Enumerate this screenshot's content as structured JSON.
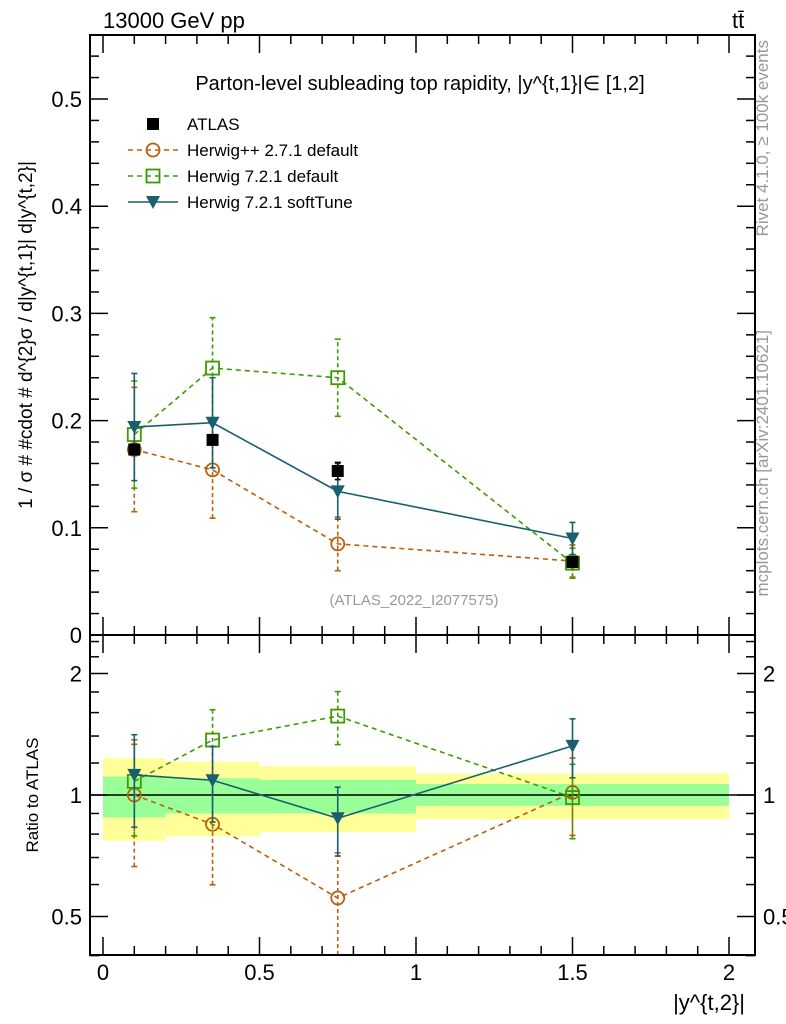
{
  "header": {
    "left": "13000 GeV pp",
    "right": "tt̄"
  },
  "side_text": {
    "rivet": "Rivet 4.1.0, ≥ 100k events",
    "mcplots": "mcplots.cern.ch [arXiv:2401.10621]"
  },
  "watermark": "(ATLAS_2022_I2077575)",
  "colors": {
    "atlas": "#000000",
    "herwigpp": "#b8600c",
    "h7default": "#3f9a00",
    "softtune": "#1b5e6e",
    "band_inner": "#99ff99",
    "band_outer": "#ffff99"
  },
  "chart_data": [
    {
      "type": "scatter",
      "panel": "main",
      "title": "Parton-level subleading top rapidity, |y^{t,1}|∈ [1,2]",
      "xlabel": "",
      "ylabel": "1 / σ # #cdot # d^{2}σ / d|y^{t,1}| d|y^{t,2}|",
      "xlim": [
        -0.04,
        2.08
      ],
      "ylim": [
        0,
        0.56
      ],
      "yticks": [
        "0",
        "0.1",
        "0.2",
        "0.3",
        "0.4",
        "0.5"
      ],
      "legend_position": "top-left",
      "x": [
        0.1,
        0.35,
        0.75,
        1.5
      ],
      "bins": [
        [
          0,
          0.2
        ],
        [
          0.2,
          0.5
        ],
        [
          0.5,
          1.0
        ],
        [
          1.0,
          2.0
        ]
      ],
      "series": [
        {
          "name": "ATLAS",
          "key": "atlas",
          "marker": "filled-square",
          "line": "none",
          "values": [
            0.173,
            0.182,
            0.153,
            0.068
          ],
          "yerr": [
            0.004,
            0.004,
            0.008,
            0.003
          ]
        },
        {
          "name": "Herwig++ 2.7.1 default",
          "key": "herwigpp",
          "marker": "open-circle",
          "line": "dashed",
          "values": [
            0.173,
            0.154,
            0.085,
            0.069
          ],
          "yerr": [
            0.058,
            0.045,
            0.025,
            0.015
          ]
        },
        {
          "name": "Herwig 7.2.1 default",
          "key": "h7default",
          "marker": "open-square",
          "line": "dashed",
          "values": [
            0.187,
            0.249,
            0.24,
            0.067
          ],
          "yerr": [
            0.05,
            0.047,
            0.036,
            0.014
          ]
        },
        {
          "name": "Herwig 7.2.1 softTune",
          "key": "softtune",
          "marker": "filled-triangle-down",
          "line": "solid",
          "values": [
            0.194,
            0.198,
            0.134,
            0.09
          ],
          "yerr": [
            0.05,
            0.042,
            0.026,
            0.015
          ]
        }
      ]
    },
    {
      "type": "scatter",
      "panel": "ratio",
      "ylabel": "Ratio to ATLAS",
      "xlabel": "|y^{t,2}|",
      "yscale": "log",
      "ylim": [
        0.4,
        2.5
      ],
      "yticks": [
        "0.5",
        "1",
        "2"
      ],
      "xticks": [
        "0",
        "0.5",
        "1",
        "1.5",
        "2"
      ],
      "band_inner": [
        [
          0.88,
          1.11
        ],
        [
          0.9,
          1.1
        ],
        [
          0.9,
          1.09
        ],
        [
          0.94,
          1.065
        ]
      ],
      "band_outer": [
        [
          0.77,
          1.235
        ],
        [
          0.79,
          1.21
        ],
        [
          0.81,
          1.18
        ],
        [
          0.87,
          1.13
        ]
      ],
      "reference_line": 1
    }
  ]
}
